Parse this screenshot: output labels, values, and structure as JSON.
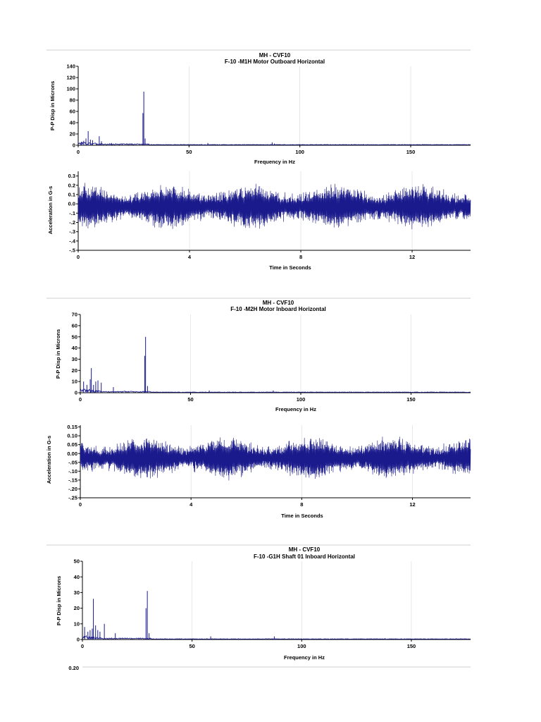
{
  "colors": {
    "trace": "#1a1a8c",
    "grid": "#d8d8d8",
    "axis": "#000000"
  },
  "charts": [
    {
      "id": "c1",
      "type": "line",
      "title1": "MH   - CVF10",
      "title2": "F-10     -M1H   Motor Outboard Horizontal",
      "xlabel": "Frequency in Hz",
      "ylabel": "P-P Disp in Microns",
      "xlim": [
        0,
        177
      ],
      "ylim": [
        0,
        140
      ],
      "xticks": [
        0,
        50,
        100,
        150
      ],
      "yticks": [
        0,
        20,
        40,
        60,
        80,
        100,
        120,
        140
      ],
      "xtick_labels": [
        "0",
        "50",
        "100",
        "150"
      ],
      "ytick_labels": [
        "0",
        "20",
        "40",
        "60",
        "80",
        "100",
        "120",
        "140"
      ],
      "peaks": [
        [
          1.5,
          6
        ],
        [
          2.5,
          8
        ],
        [
          3.5,
          12
        ],
        [
          4.5,
          25
        ],
        [
          5.5,
          10
        ],
        [
          6.5,
          9
        ],
        [
          9.5,
          16
        ],
        [
          10.5,
          7
        ],
        [
          15,
          4
        ],
        [
          20,
          3
        ],
        [
          29.2,
          57
        ],
        [
          29.6,
          95
        ],
        [
          30.2,
          12
        ],
        [
          58.5,
          4
        ],
        [
          87.5,
          5
        ],
        [
          88.5,
          3
        ]
      ]
    },
    {
      "id": "c2",
      "type": "line",
      "xlabel": "Time in Seconds",
      "ylabel": "Acceleration in G-s",
      "xlim": [
        0,
        14.1
      ],
      "ylim": [
        -0.5,
        0.35
      ],
      "xticks": [
        0,
        4,
        8,
        12
      ],
      "yticks": [
        -0.5,
        -0.4,
        -0.3,
        -0.2,
        -0.1,
        0.0,
        0.1,
        0.2,
        0.3
      ],
      "xtick_labels": [
        "0",
        "4",
        "8",
        "12"
      ],
      "ytick_labels": [
        "-.5",
        "-.4",
        "-.3",
        "-.2",
        "-.1",
        "0.0",
        "0.1",
        "0.2",
        "0.3"
      ],
      "signal": {
        "mean": -0.03,
        "amplitude": 0.19,
        "max": 0.32,
        "min": -0.43
      }
    },
    {
      "id": "c3",
      "type": "line",
      "title1": "MH   - CVF10",
      "title2": "F-10     -M2H   Motor Inboard Horizontal",
      "xlabel": "Frequency in Hz",
      "ylabel": "P-P Disp in Microns",
      "xlim": [
        0,
        177
      ],
      "ylim": [
        0,
        70
      ],
      "xticks": [
        0,
        50,
        100,
        150
      ],
      "yticks": [
        0,
        10,
        20,
        30,
        40,
        50,
        60,
        70
      ],
      "xtick_labels": [
        "0",
        "50",
        "100",
        "150"
      ],
      "ytick_labels": [
        "0",
        "10",
        "20",
        "30",
        "40",
        "50",
        "60",
        "70"
      ],
      "peaks": [
        [
          1.5,
          10
        ],
        [
          3,
          7
        ],
        [
          4.5,
          12
        ],
        [
          5,
          22
        ],
        [
          6,
          7
        ],
        [
          7,
          10
        ],
        [
          8,
          11
        ],
        [
          9.5,
          9
        ],
        [
          15,
          5
        ],
        [
          29.2,
          33
        ],
        [
          29.6,
          50
        ],
        [
          30.5,
          6
        ],
        [
          58.5,
          2
        ],
        [
          87.5,
          2
        ]
      ]
    },
    {
      "id": "c4",
      "type": "line",
      "xlabel": "Time in Seconds",
      "ylabel": "Acceleration in G-s",
      "xlim": [
        0,
        14.1
      ],
      "ylim": [
        -0.25,
        0.16
      ],
      "xticks": [
        0,
        4,
        8,
        12
      ],
      "yticks": [
        -0.25,
        -0.2,
        -0.15,
        -0.1,
        -0.05,
        0.0,
        0.05,
        0.1,
        0.15
      ],
      "xtick_labels": [
        "0",
        "4",
        "8",
        "12"
      ],
      "ytick_labels": [
        "-.25",
        "-.20",
        "-.15",
        "-.10",
        "-.05",
        "0.00",
        "0.05",
        "0.10",
        "0.15"
      ],
      "signal": {
        "mean": -0.025,
        "amplitude": 0.095,
        "max": 0.14,
        "min": -0.2
      }
    },
    {
      "id": "c5",
      "type": "line",
      "title1": "MH   - CVF10",
      "title2": "F-10     -G1H   Shaft 01 Inboard Horizontal",
      "xlabel": "Frequency in Hz",
      "ylabel": "P-P Disp in Microns",
      "xlim": [
        0,
        177
      ],
      "ylim": [
        0,
        50
      ],
      "xticks": [
        0,
        50,
        100,
        150
      ],
      "yticks": [
        0,
        10,
        20,
        30,
        40,
        50
      ],
      "xtick_labels": [
        "0",
        "50",
        "100",
        "150"
      ],
      "ytick_labels": [
        "0",
        "10",
        "20",
        "30",
        "40",
        "50"
      ],
      "peaks": [
        [
          1,
          8
        ],
        [
          2.5,
          5
        ],
        [
          3.5,
          6
        ],
        [
          4.5,
          7
        ],
        [
          5,
          26
        ],
        [
          6,
          9
        ],
        [
          7,
          6
        ],
        [
          8,
          5
        ],
        [
          10,
          10
        ],
        [
          15,
          4
        ],
        [
          29,
          20
        ],
        [
          29.6,
          31
        ],
        [
          30.4,
          4
        ],
        [
          58.5,
          2
        ],
        [
          87.5,
          2
        ]
      ]
    }
  ],
  "footer": {
    "partial_tick": "0.20"
  }
}
